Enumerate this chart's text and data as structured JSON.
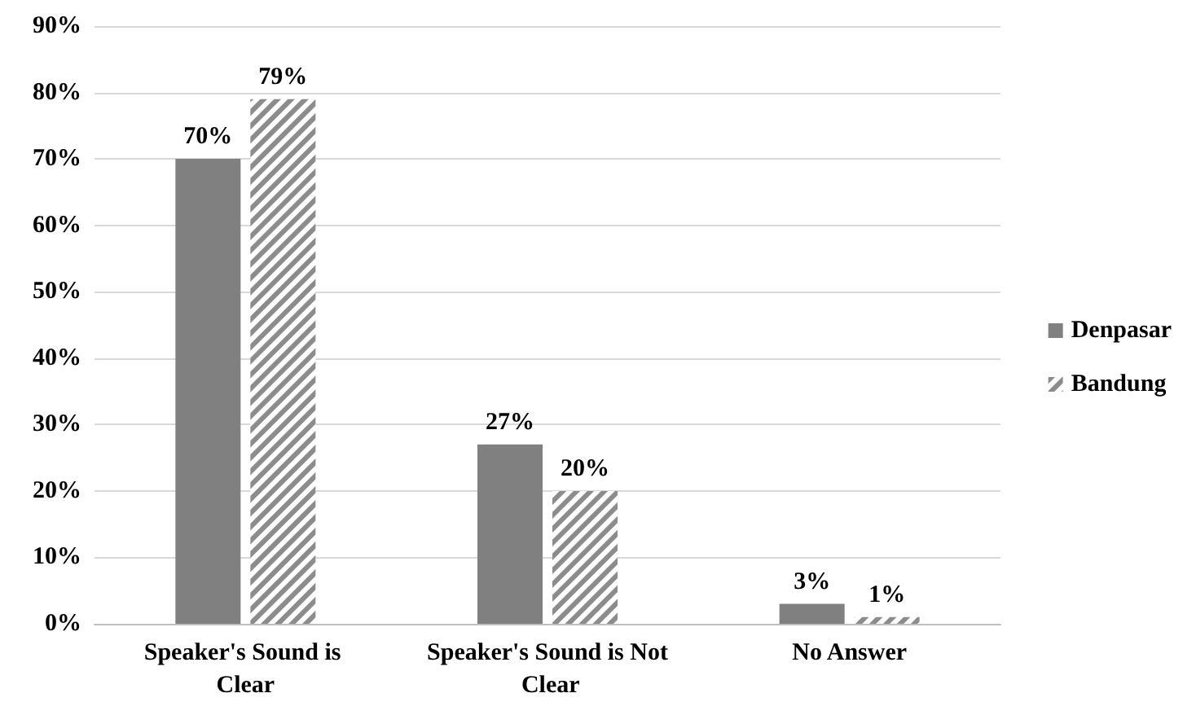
{
  "chart_data": {
    "type": "bar",
    "categories": [
      "Speaker's Sound is Clear",
      "Speaker's Sound is Not Clear",
      "No Answer"
    ],
    "series": [
      {
        "name": "Denpasar",
        "color": "#808080",
        "values": [
          70,
          27,
          3
        ],
        "value_labels": [
          "70%",
          "27%",
          "3%"
        ]
      },
      {
        "name": "Bandung",
        "color": "#8c8c8c",
        "values": [
          79,
          20,
          1
        ],
        "value_labels": [
          "79%",
          "20%",
          "1%"
        ]
      }
    ],
    "ylim": [
      0,
      90
    ],
    "yticks": [
      {
        "value": 0,
        "label": "0%"
      },
      {
        "value": 10,
        "label": "10%"
      },
      {
        "value": 20,
        "label": "20%"
      },
      {
        "value": 30,
        "label": "30%"
      },
      {
        "value": 40,
        "label": "40%"
      },
      {
        "value": 50,
        "label": "50%"
      },
      {
        "value": 60,
        "label": "60%"
      },
      {
        "value": 70,
        "label": "70%"
      },
      {
        "value": 80,
        "label": "80%"
      },
      {
        "value": 90,
        "label": "90%"
      }
    ],
    "grid": "y",
    "legend": "right"
  }
}
